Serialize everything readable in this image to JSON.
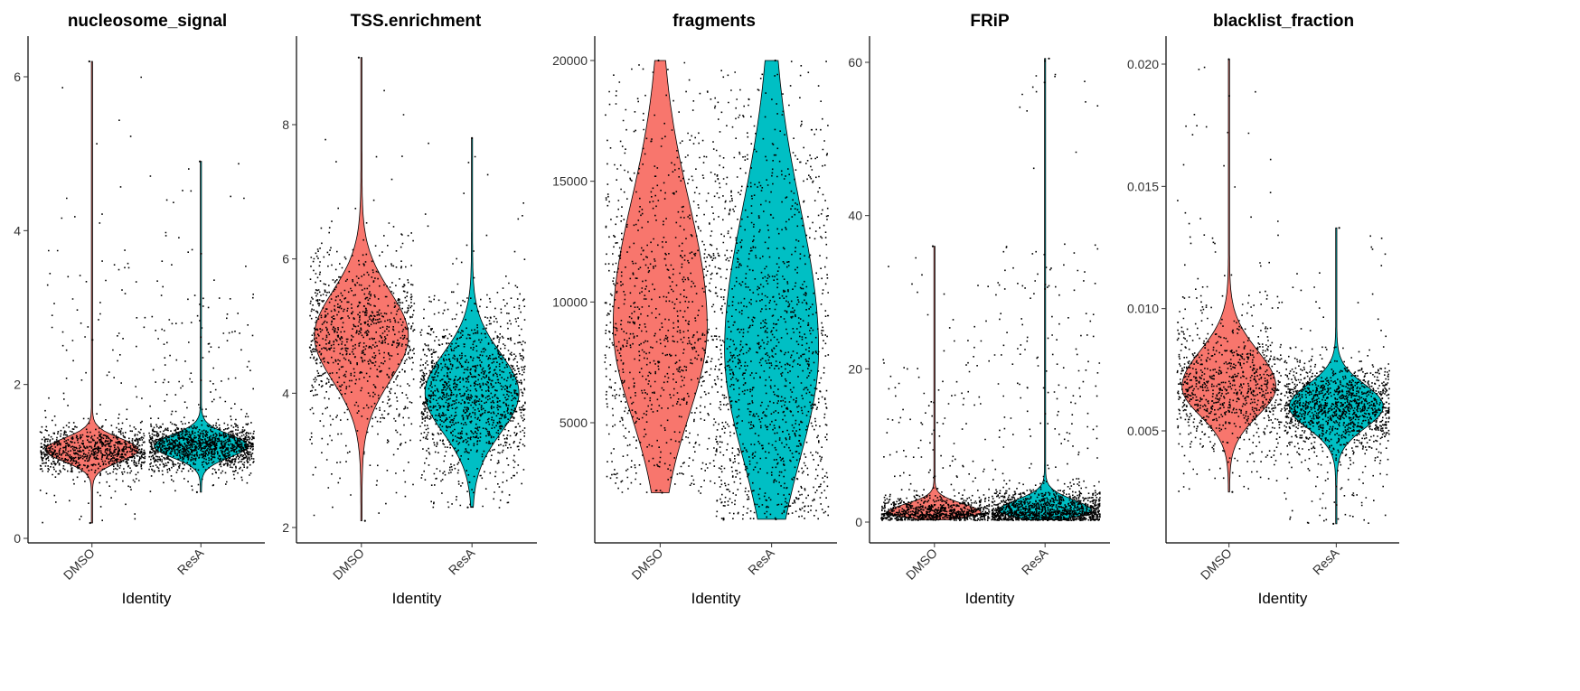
{
  "chart_data": [
    {
      "type": "violin",
      "title": "nucleosome_signal",
      "xlabel": "Identity",
      "ylabel": "",
      "categories": [
        "DMSO",
        "ResA"
      ],
      "yticks": [
        "0",
        "2",
        "4",
        "6"
      ],
      "ylim": [
        0,
        6.2
      ],
      "colors": [
        "#F8766D",
        "#00BFC4"
      ],
      "series": [
        {
          "category": "DMSO",
          "min": 0.2,
          "max": 6.2,
          "median": 1.15,
          "q1": 1.05,
          "q3": 1.25,
          "n_points": 1800
        },
        {
          "category": "ResA",
          "min": 0.6,
          "max": 4.9,
          "median": 1.2,
          "q1": 1.1,
          "q3": 1.3,
          "n_points": 2600
        }
      ]
    },
    {
      "type": "violin",
      "title": "TSS.enrichment",
      "xlabel": "Identity",
      "ylabel": "",
      "categories": [
        "DMSO",
        "ResA"
      ],
      "yticks": [
        "2",
        "4",
        "6",
        "8"
      ],
      "ylim": [
        1.9,
        9.1
      ],
      "colors": [
        "#F8766D",
        "#00BFC4"
      ],
      "series": [
        {
          "category": "DMSO",
          "min": 2.1,
          "max": 9.0,
          "median": 4.85,
          "q1": 4.4,
          "q3": 5.3,
          "n_points": 1800
        },
        {
          "category": "ResA",
          "min": 2.3,
          "max": 7.8,
          "median": 4.0,
          "q1": 3.6,
          "q3": 4.4,
          "n_points": 2600
        }
      ]
    },
    {
      "type": "violin",
      "title": "fragments",
      "xlabel": "Identity",
      "ylabel": "",
      "categories": [
        "DMSO",
        "ResA"
      ],
      "yticks": [
        "5000",
        "10000",
        "15000",
        "20000"
      ],
      "ylim": [
        1000,
        20000
      ],
      "colors": [
        "#F8766D",
        "#00BFC4"
      ],
      "series": [
        {
          "category": "DMSO",
          "min": 2100,
          "max": 20000,
          "median": 9000,
          "q1": 6500,
          "q3": 12500,
          "n_points": 1800
        },
        {
          "category": "ResA",
          "min": 1000,
          "max": 20000,
          "median": 8000,
          "q1": 5000,
          "q3": 12000,
          "n_points": 2600
        }
      ]
    },
    {
      "type": "violin",
      "title": "FRiP",
      "xlabel": "Identity",
      "ylabel": "",
      "categories": [
        "DMSO",
        "ResA"
      ],
      "yticks": [
        "0",
        "20",
        "40",
        "60"
      ],
      "ylim": [
        -0.5,
        61
      ],
      "colors": [
        "#F8766D",
        "#00BFC4"
      ],
      "series": [
        {
          "category": "DMSO",
          "min": 0.3,
          "max": 36,
          "median": 1.2,
          "q1": 0.8,
          "q3": 2.0,
          "n_points": 1800
        },
        {
          "category": "ResA",
          "min": 0.3,
          "max": 60.5,
          "median": 1.4,
          "q1": 0.9,
          "q3": 2.4,
          "n_points": 2600
        }
      ]
    },
    {
      "type": "violin",
      "title": "blacklist_fraction",
      "xlabel": "Identity",
      "ylabel": "",
      "categories": [
        "DMSO",
        "ResA"
      ],
      "yticks": [
        "0.005",
        "0.010",
        "0.015",
        "0.020"
      ],
      "ylim": [
        0.001,
        0.0203
      ],
      "colors": [
        "#F8766D",
        "#00BFC4"
      ],
      "series": [
        {
          "category": "DMSO",
          "min": 0.0025,
          "max": 0.0202,
          "median": 0.0068,
          "q1": 0.006,
          "q3": 0.0078,
          "n_points": 1800
        },
        {
          "category": "ResA",
          "min": 0.0012,
          "max": 0.0133,
          "median": 0.006,
          "q1": 0.0054,
          "q3": 0.0066,
          "n_points": 2600
        }
      ]
    }
  ]
}
